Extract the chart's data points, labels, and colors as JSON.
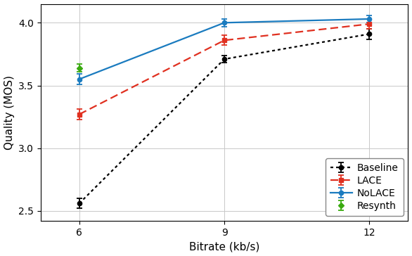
{
  "title": "",
  "xlabel": "Bitrate (kb/s)",
  "ylabel": "Quality (MOS)",
  "xlim": [
    5.2,
    12.8
  ],
  "ylim": [
    2.42,
    4.15
  ],
  "xticks": [
    6,
    9,
    12
  ],
  "yticks": [
    2.5,
    3.0,
    3.5,
    4.0
  ],
  "grid": true,
  "series": {
    "Baseline": {
      "x": [
        6,
        9,
        12
      ],
      "y": [
        2.56,
        3.71,
        3.91
      ],
      "yerr": [
        0.04,
        0.03,
        0.04
      ],
      "color": "#000000",
      "linestyle": "dotted",
      "marker": "o",
      "marker_size": 4.5,
      "linewidth": 1.6
    },
    "LACE": {
      "x": [
        6,
        9,
        12
      ],
      "y": [
        3.27,
        3.86,
        3.99
      ],
      "yerr": [
        0.04,
        0.04,
        0.04
      ],
      "color": "#e03020",
      "linestyle": "dashed",
      "marker": "s",
      "marker_size": 4.5,
      "linewidth": 1.6
    },
    "NoLACE": {
      "x": [
        6,
        9,
        12
      ],
      "y": [
        3.55,
        4.0,
        4.03
      ],
      "yerr": [
        0.04,
        0.03,
        0.03
      ],
      "color": "#1a7bbf",
      "linestyle": "solid",
      "marker": "o",
      "marker_size": 4.5,
      "linewidth": 1.6
    },
    "Resynth": {
      "x": [
        6
      ],
      "y": [
        3.64
      ],
      "yerr": [
        0.03
      ],
      "color": "#3aaa10",
      "linestyle": "none",
      "marker": "D",
      "marker_size": 4.5,
      "linewidth": 1.6
    }
  },
  "legend_loc": "lower right",
  "legend_fontsize": 10,
  "axis_fontsize": 11,
  "tick_fontsize": 10,
  "background_color": "#ffffff"
}
